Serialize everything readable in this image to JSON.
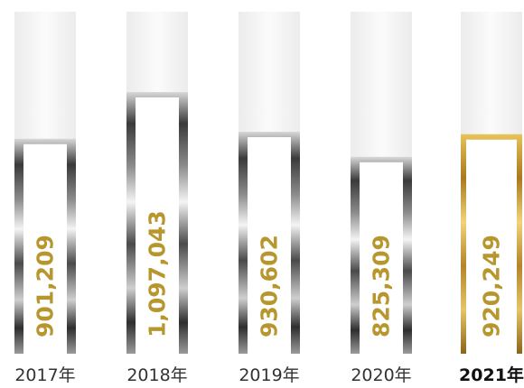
{
  "chart_data": {
    "type": "bar",
    "title": "",
    "xlabel": "",
    "ylabel": "",
    "categories": [
      "2017年",
      "2018年",
      "2019年",
      "2020年",
      "2021年"
    ],
    "values": [
      901209,
      1097043,
      930602,
      825309,
      920249
    ],
    "value_labels": [
      "901,209",
      "1,097,043",
      "930,602",
      "825,309",
      "920,249"
    ],
    "highlight_index": 4,
    "colors": {
      "value_text": "#b8962e",
      "silver_dark": "#3a3a3a",
      "silver_light": "#f4f4f4",
      "gold_dark": "#a87a1c",
      "gold_light": "#f2d37a",
      "track_top": "#f3f3f3",
      "track_bottom": "#ffffff"
    }
  }
}
